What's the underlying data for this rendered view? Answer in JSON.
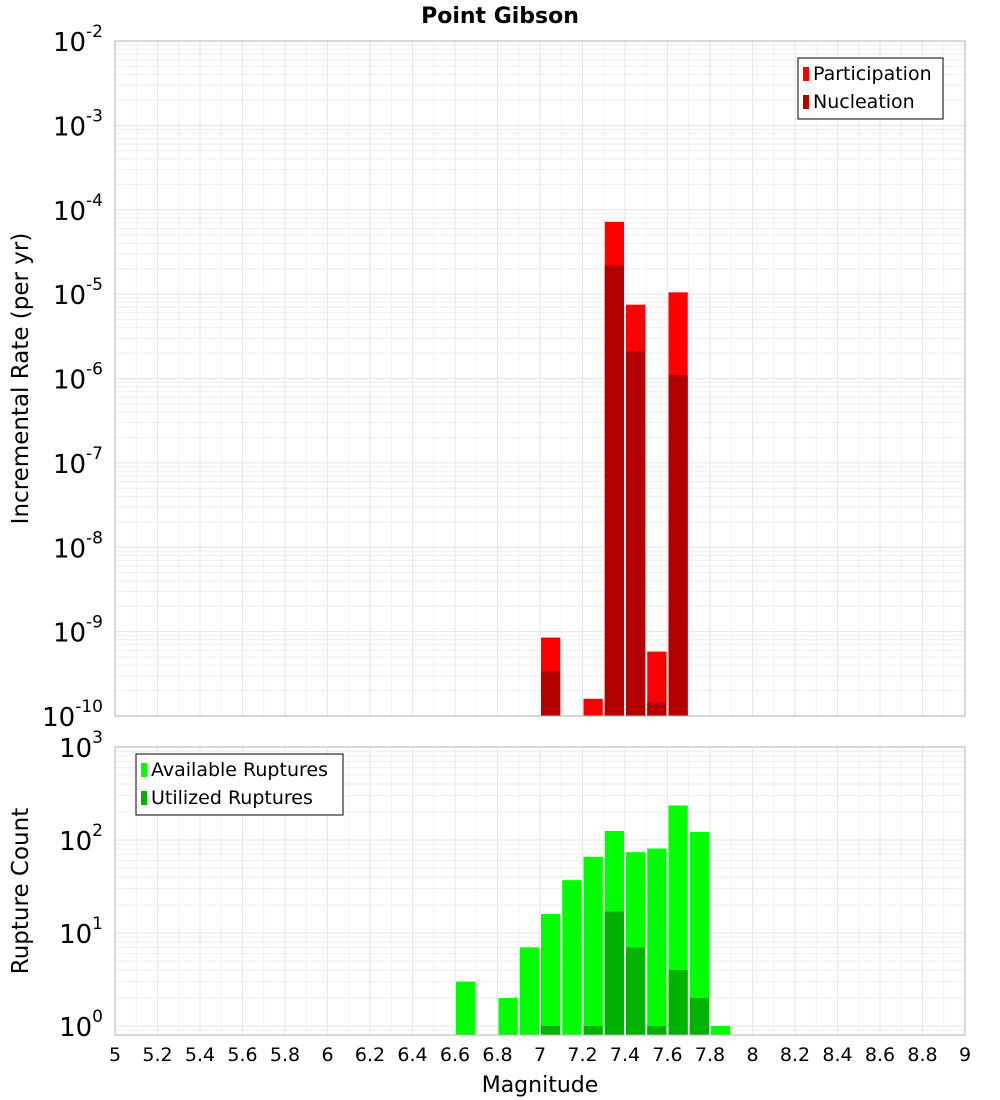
{
  "title": "Point Gibson",
  "xlabel": "Magnitude",
  "x_ticks": [
    "5",
    "5.2",
    "5.4",
    "5.6",
    "5.8",
    "6",
    "6.2",
    "6.4",
    "6.6",
    "6.8",
    "7",
    "7.2",
    "7.4",
    "7.6",
    "7.8",
    "8",
    "8.2",
    "8.4",
    "8.6",
    "8.8",
    "9"
  ],
  "chart_data": [
    {
      "type": "bar",
      "title": "Point Gibson",
      "xlabel": "",
      "ylabel": "Incremental Rate (per yr)",
      "xlim": [
        5,
        9
      ],
      "ylim": [
        1e-10,
        0.01
      ],
      "yscale": "log",
      "grid": true,
      "legend_position": "top-right",
      "y_ticks": [
        {
          "base": "10",
          "exp": "-10",
          "value": 1e-10
        },
        {
          "base": "10",
          "exp": "-9",
          "value": 1e-09
        },
        {
          "base": "10",
          "exp": "-8",
          "value": 1e-08
        },
        {
          "base": "10",
          "exp": "-7",
          "value": 1e-07
        },
        {
          "base": "10",
          "exp": "-6",
          "value": 1e-06
        },
        {
          "base": "10",
          "exp": "-5",
          "value": 1e-05
        },
        {
          "base": "10",
          "exp": "-4",
          "value": 0.0001
        },
        {
          "base": "10",
          "exp": "-3",
          "value": 0.001
        },
        {
          "base": "10",
          "exp": "-2",
          "value": 0.01
        }
      ],
      "series": [
        {
          "name": "Participation",
          "color": "#ff0000",
          "x": [
            7.05,
            7.25,
            7.35,
            7.45,
            7.55,
            7.65
          ],
          "values": [
            8.5e-10,
            1.6e-10,
            7.2e-05,
            7.5e-06,
            5.8e-10,
            1.05e-05
          ]
        },
        {
          "name": "Nucleation",
          "color": "#b30000",
          "x": [
            7.05,
            7.35,
            7.45,
            7.55,
            7.65
          ],
          "values": [
            3.4e-10,
            2.2e-05,
            2.1e-06,
            1.45e-10,
            1.1e-06
          ]
        }
      ]
    },
    {
      "type": "bar",
      "title": "",
      "xlabel": "Magnitude",
      "ylabel": "Rupture Count",
      "xlim": [
        5,
        9
      ],
      "ylim": [
        0.8,
        1000
      ],
      "yscale": "log",
      "grid": true,
      "legend_position": "top-left",
      "y_ticks": [
        {
          "base": "10",
          "exp": "0",
          "value": 1
        },
        {
          "base": "10",
          "exp": "1",
          "value": 10
        },
        {
          "base": "10",
          "exp": "2",
          "value": 100
        },
        {
          "base": "10",
          "exp": "3",
          "value": 1000
        }
      ],
      "series": [
        {
          "name": "Available Ruptures",
          "color": "#00ff00",
          "x": [
            6.65,
            6.85,
            6.95,
            7.05,
            7.15,
            7.25,
            7.35,
            7.45,
            7.55,
            7.65,
            7.75,
            7.85
          ],
          "values": [
            3,
            2,
            7,
            16,
            37,
            66,
            125,
            74,
            81,
            235,
            122,
            1
          ]
        },
        {
          "name": "Utilized Ruptures",
          "color": "#00b300",
          "x": [
            7.05,
            7.25,
            7.35,
            7.45,
            7.55,
            7.65,
            7.75
          ],
          "values": [
            1,
            1,
            17,
            7,
            1,
            4,
            2
          ]
        }
      ]
    }
  ]
}
